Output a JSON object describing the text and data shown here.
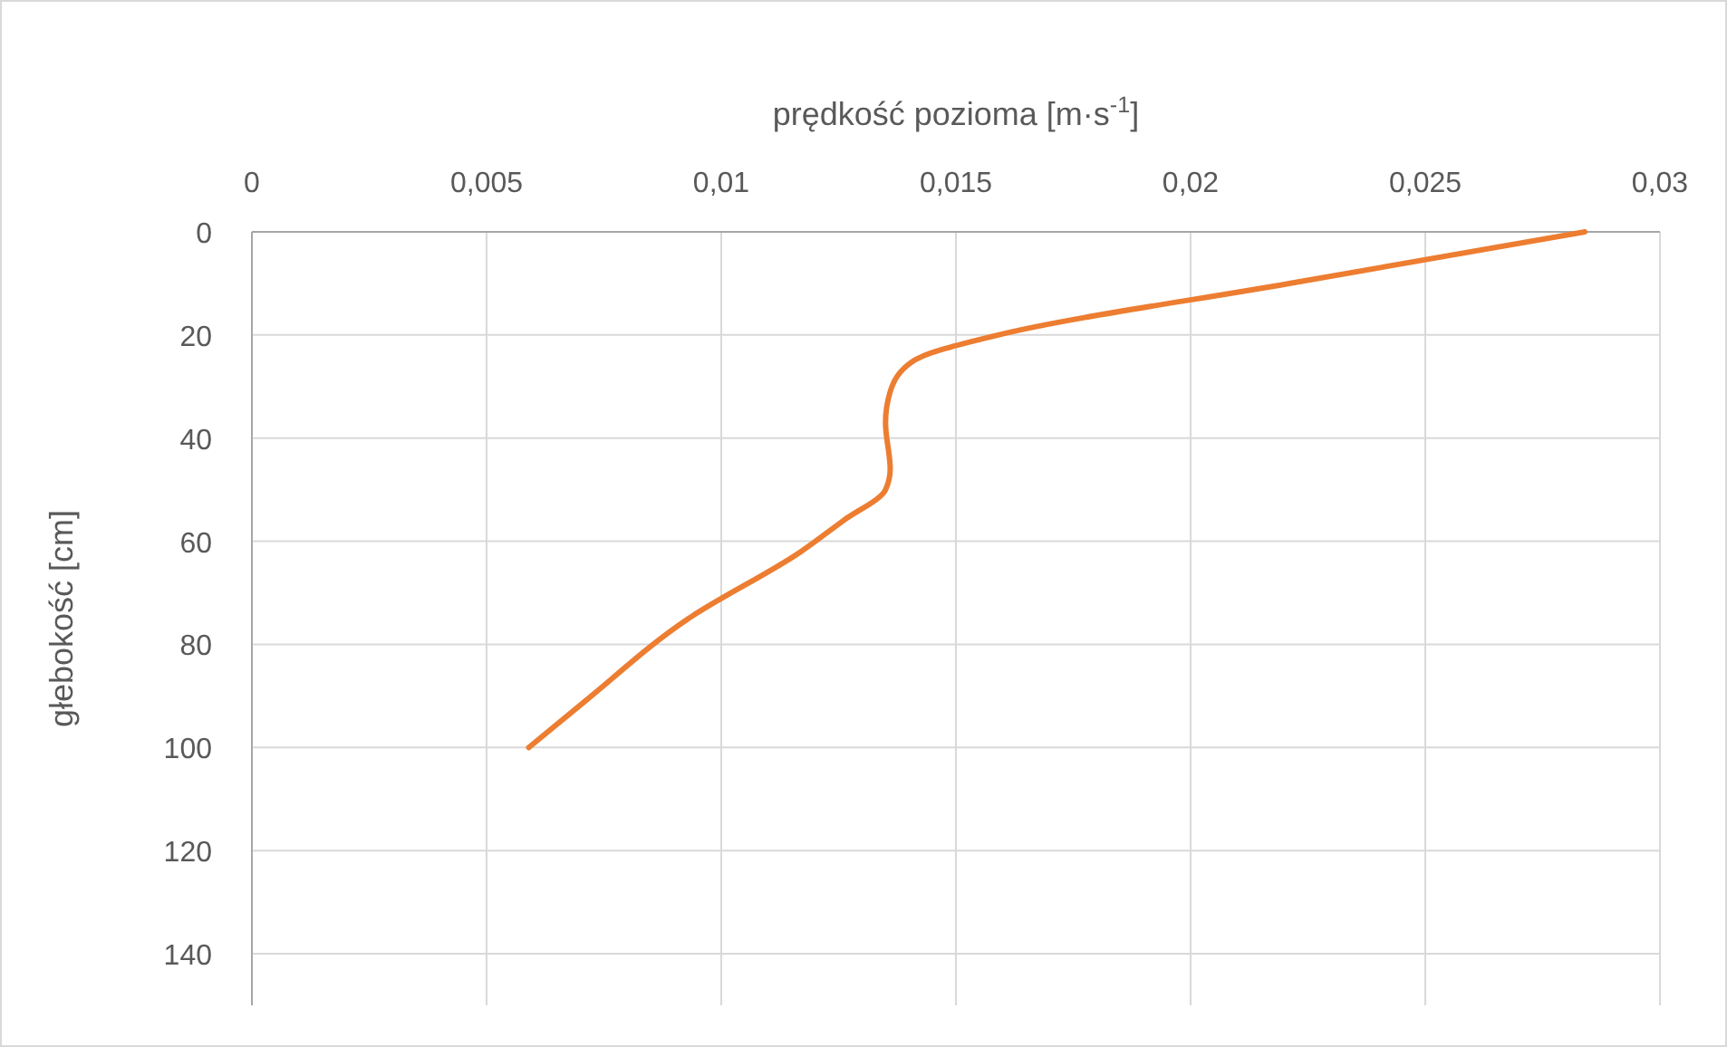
{
  "chart_data": {
    "type": "line",
    "xlabel": "prędkość pozioma [m·s$^{-1}$]",
    "ylabel": "głebokość [cm]",
    "xlim": [
      0,
      0.03
    ],
    "xticks": [
      0,
      {
        "value": 0.005,
        "label": "0,005"
      },
      {
        "value": 0.01,
        "label": "0,01"
      },
      {
        "value": 0.015,
        "label": "0,015"
      },
      {
        "value": 0.02,
        "label": "0,02"
      },
      {
        "value": 0.025,
        "label": "0,025"
      },
      {
        "value": 0.03,
        "label": "0,03"
      }
    ],
    "ylim": [
      150,
      0
    ],
    "yticks": [
      0,
      20,
      40,
      60,
      80,
      100,
      120,
      140
    ],
    "grid": true,
    "marker": "none",
    "line_style": "solid",
    "series": [
      {
        "color": "#ed7d31",
        "x": [
          0.0284,
          0.0221,
          0.0159,
          0.0141,
          0.0136,
          0.0135,
          0.0136,
          0.0135,
          0.0126,
          0.0117,
          0.0093,
          0.0071,
          0.0059
        ],
        "values": [
          0,
          10,
          20,
          25,
          31,
          37,
          46,
          50,
          56,
          62,
          75,
          91,
          100
        ]
      }
    ]
  }
}
